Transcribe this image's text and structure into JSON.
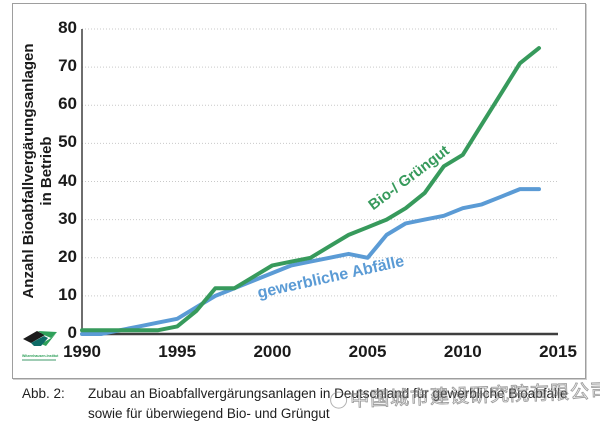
{
  "figure": {
    "caption_label": "Abb. 2:",
    "caption_text": "Zubau an Bioabfallvergärungsanlagen in Deutschland für gewerbliche Bioabfälle sowie für überwiegend Bio- und Grüngut"
  },
  "watermark": {
    "text": "中国城市建设研究院有限公司"
  },
  "logo": {
    "name": "Witzenhausen-Institut"
  },
  "chart_data": {
    "type": "line",
    "title": "",
    "ylabel_line1": "Anzahl Bioabfallvergärungsanlagen",
    "ylabel_line2": "in Betrieb",
    "xlabel": "",
    "ylim": [
      0,
      80
    ],
    "xlim": [
      1990,
      2015
    ],
    "yticks": [
      0,
      10,
      20,
      30,
      40,
      50,
      60,
      70,
      80
    ],
    "xticks": [
      1990,
      1995,
      2000,
      2005,
      2010,
      2015
    ],
    "grid": "horizontal dotted gridlines every 10 units",
    "legend_position": "labels rotated inline along the lines",
    "x": [
      1990,
      1991,
      1992,
      1993,
      1994,
      1995,
      1996,
      1997,
      1998,
      1999,
      2000,
      2001,
      2002,
      2003,
      2004,
      2005,
      2006,
      2007,
      2008,
      2009,
      2010,
      2011,
      2012,
      2013,
      2014
    ],
    "series": [
      {
        "name": "Bio-/ Grüngut",
        "color": "#379a5c",
        "values": [
          1,
          1,
          1,
          1,
          1,
          2,
          6,
          12,
          12,
          15,
          18,
          19,
          20,
          23,
          26,
          28,
          30,
          33,
          37,
          44,
          47,
          55,
          63,
          71,
          75
        ]
      },
      {
        "name": "gewerbliche Abfälle",
        "color": "#5b9bd5",
        "values": [
          0,
          0,
          1,
          2,
          3,
          4,
          7,
          10,
          12,
          14,
          16,
          18,
          19,
          20,
          21,
          20,
          26,
          29,
          30,
          31,
          33,
          34,
          36,
          38,
          38
        ]
      }
    ]
  }
}
